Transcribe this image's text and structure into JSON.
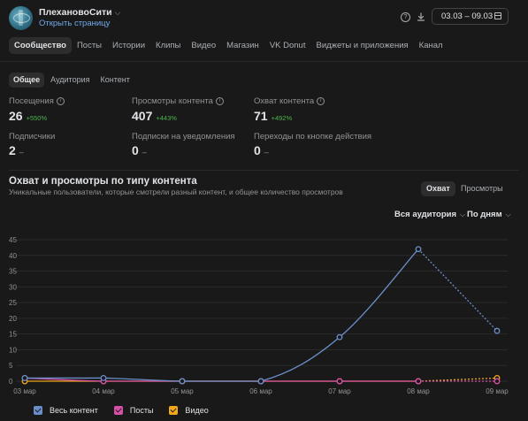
{
  "header": {
    "group_name": "ПлехановоСити",
    "open_page": "Открыть страницу",
    "date_range": "03.03 – 09.03"
  },
  "icons": {
    "help": "help-circle-icon",
    "download": "download-icon",
    "calendar": "calendar-icon"
  },
  "main_tabs": [
    {
      "label": "Сообщество",
      "active": true
    },
    {
      "label": "Посты"
    },
    {
      "label": "Истории"
    },
    {
      "label": "Клипы"
    },
    {
      "label": "Видео"
    },
    {
      "label": "Магазин"
    },
    {
      "label": "VK Donut"
    },
    {
      "label": "Виджеты и приложения"
    },
    {
      "label": "Канал"
    }
  ],
  "sub_tabs": [
    {
      "label": "Общее",
      "active": true
    },
    {
      "label": "Аудитория"
    },
    {
      "label": "Контент"
    }
  ],
  "metrics": {
    "visits": {
      "label": "Посещения",
      "value": "26",
      "delta": "+550%"
    },
    "content_views": {
      "label": "Просмотры контента",
      "value": "407",
      "delta": "+443%"
    },
    "content_reach": {
      "label": "Охват контента",
      "value": "71",
      "delta": "+492%"
    },
    "subscribers": {
      "label": "Подписчики",
      "value": "2",
      "dash": "–"
    },
    "notif_subs": {
      "label": "Подписки на уведомления",
      "value": "0",
      "dash": "–"
    },
    "action_clicks": {
      "label": "Переходы по кнопке действия",
      "value": "0",
      "dash": "–"
    }
  },
  "section": {
    "title": "Охват и просмотры по типу контента",
    "subtitle": "Уникальные пользователи, которые смотрели разный контент, и общее количество просмотров",
    "seg_reach": "Охват",
    "seg_views": "Просмотры",
    "filter_audience": "Вся аудитория",
    "filter_period": "По дням"
  },
  "colors": {
    "all_content": "#6b8ec9",
    "posts": "#d84fa8",
    "video": "#f2a818",
    "link": "#71aaeb",
    "positive": "#4bb34b"
  },
  "chart_data": {
    "type": "line",
    "x": [
      "03 мар",
      "04 мар",
      "05 мар",
      "06 мар",
      "07 мар",
      "08 мар",
      "09 мар"
    ],
    "yticks": [
      0,
      5,
      10,
      15,
      20,
      25,
      30,
      35,
      40,
      45
    ],
    "ylim": [
      0,
      45
    ],
    "series": [
      {
        "name": "Весь контент",
        "color": "#6b8ec9",
        "values": [
          1,
          1,
          0,
          0,
          14,
          42,
          16
        ],
        "dashed_from": 5
      },
      {
        "name": "Посты",
        "color": "#d84fa8",
        "values": [
          1,
          0,
          0,
          0,
          0,
          0,
          0
        ],
        "dashed_from": 5
      },
      {
        "name": "Видео",
        "color": "#f2a818",
        "values": [
          0,
          0,
          0,
          0,
          0,
          0,
          1
        ],
        "dashed_from": 5
      }
    ],
    "legend_position": "bottom-left",
    "grid": true
  }
}
